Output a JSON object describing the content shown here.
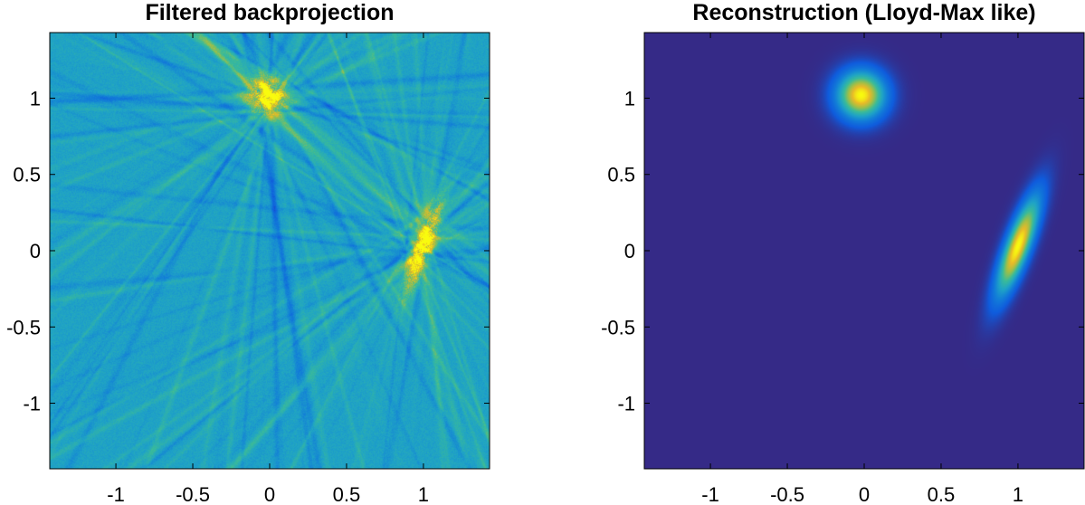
{
  "chart_data": [
    {
      "type": "heatmap",
      "title": "Filtered backprojection",
      "xlabel": "",
      "ylabel": "",
      "xlim": [
        -1.43,
        1.43
      ],
      "ylim": [
        -1.43,
        1.43
      ],
      "xticks": [
        -1,
        -0.5,
        0,
        0.5,
        1
      ],
      "yticks": [
        -1,
        -0.5,
        0,
        0.5,
        1
      ],
      "xtick_labels": [
        "-1",
        "-0.5",
        "0",
        "0.5",
        "1"
      ],
      "ytick_labels": [
        "-1",
        "-0.5",
        "0",
        "0.5",
        "1"
      ],
      "background_value": 0.45,
      "sources": [
        {
          "name": "disk",
          "x": -0.02,
          "y": 1.02,
          "sigma_x": 0.09,
          "sigma_y": 0.09,
          "angle_deg": 0,
          "peak": 1.0
        },
        {
          "name": "ellipse",
          "x": 1.0,
          "y": 0.03,
          "sigma_x": 0.04,
          "sigma_y": 0.22,
          "angle_deg": -20,
          "peak": 1.0
        }
      ],
      "streak_artifacts": true,
      "colormap": "parula"
    },
    {
      "type": "heatmap",
      "title": "Reconstruction (Lloyd-Max like)",
      "xlabel": "",
      "ylabel": "",
      "xlim": [
        -1.43,
        1.43
      ],
      "ylim": [
        -1.43,
        1.43
      ],
      "xticks": [
        -1,
        -0.5,
        0,
        0.5,
        1
      ],
      "yticks": [
        -1,
        -0.5,
        0,
        0.5,
        1
      ],
      "xtick_labels": [
        "-1",
        "-0.5",
        "0",
        "0.5",
        "1"
      ],
      "ytick_labels": [
        "-1",
        "-0.5",
        "0",
        "0.5",
        "1"
      ],
      "background_value": 0.0,
      "sources": [
        {
          "name": "disk",
          "x": -0.02,
          "y": 1.02,
          "sigma_x": 0.11,
          "sigma_y": 0.11,
          "angle_deg": 0,
          "peak": 1.0
        },
        {
          "name": "ellipse",
          "x": 1.0,
          "y": 0.03,
          "sigma_x": 0.055,
          "sigma_y": 0.24,
          "angle_deg": -20,
          "peak": 1.0
        }
      ],
      "streak_artifacts": false,
      "colormap": "parula"
    }
  ],
  "colors": {
    "parula_low": "#352a87",
    "parula_mid": "#1fa3c6",
    "parula_high": "#f9fb0e"
  }
}
